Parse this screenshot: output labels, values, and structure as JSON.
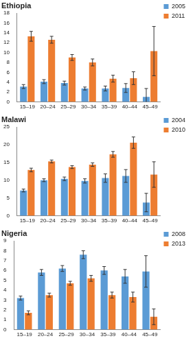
{
  "chart_data": [
    {
      "type": "bar",
      "title": "Ethiopia",
      "categories": [
        "15–19",
        "20–24",
        "25–29",
        "30–34",
        "35–39",
        "40–44",
        "45–49"
      ],
      "series": [
        {
          "name": "2005",
          "color": "#5B9BD5",
          "values": [
            3.1,
            4.1,
            3.8,
            2.7,
            2.7,
            2.8,
            1.0
          ],
          "errors": [
            0.4,
            0.4,
            0.4,
            0.3,
            0.5,
            0.9,
            1.7
          ]
        },
        {
          "name": "2011",
          "color": "#ED7D31",
          "values": [
            13.3,
            12.6,
            9.0,
            8.0,
            4.7,
            4.8,
            10.3
          ],
          "errors": [
            1.0,
            0.7,
            0.6,
            0.7,
            0.7,
            1.3,
            5.0
          ]
        }
      ],
      "ylim": [
        0,
        18
      ],
      "yticks": [
        0,
        2,
        4,
        6,
        8,
        10,
        12,
        14,
        16,
        18
      ],
      "grid": false,
      "legend": "right"
    },
    {
      "type": "bar",
      "title": "Malawi",
      "categories": [
        "15–19",
        "20–24",
        "25–29",
        "30–34",
        "35–39",
        "40–44",
        "45–49"
      ],
      "series": [
        {
          "name": "2004",
          "color": "#5B9BD5",
          "values": [
            7.1,
            10.0,
            10.4,
            9.8,
            10.6,
            11.2,
            3.7
          ],
          "errors": [
            0.4,
            0.4,
            0.5,
            0.6,
            1.2,
            1.8,
            2.6
          ]
        },
        {
          "name": "2010",
          "color": "#ED7D31",
          "values": [
            12.9,
            15.3,
            13.7,
            14.4,
            17.3,
            20.6,
            11.6
          ],
          "errors": [
            0.5,
            0.4,
            0.4,
            0.5,
            0.8,
            1.6,
            3.6
          ]
        }
      ],
      "ylim": [
        0,
        25
      ],
      "yticks": [
        0,
        5,
        10,
        15,
        20,
        25
      ],
      "grid": false,
      "legend": "right"
    },
    {
      "type": "bar",
      "title": "Nigeria",
      "categories": [
        "15–19",
        "20–24",
        "25–29",
        "30–34",
        "35–39",
        "40–44",
        "45–49"
      ],
      "series": [
        {
          "name": "2008",
          "color": "#5B9BD5",
          "values": [
            3.2,
            5.8,
            6.2,
            7.6,
            6.0,
            5.4,
            5.9
          ],
          "errors": [
            0.2,
            0.3,
            0.3,
            0.4,
            0.4,
            0.7,
            1.6
          ]
        },
        {
          "name": "2013",
          "color": "#ED7D31",
          "values": [
            1.7,
            3.5,
            4.7,
            5.2,
            3.5,
            3.3,
            1.3
          ],
          "errors": [
            0.2,
            0.2,
            0.2,
            0.3,
            0.3,
            0.5,
            0.8
          ]
        }
      ],
      "ylim": [
        0,
        9
      ],
      "yticks": [
        0,
        1,
        2,
        3,
        4,
        5,
        6,
        7,
        8,
        9
      ],
      "grid": false,
      "legend": "right"
    }
  ]
}
